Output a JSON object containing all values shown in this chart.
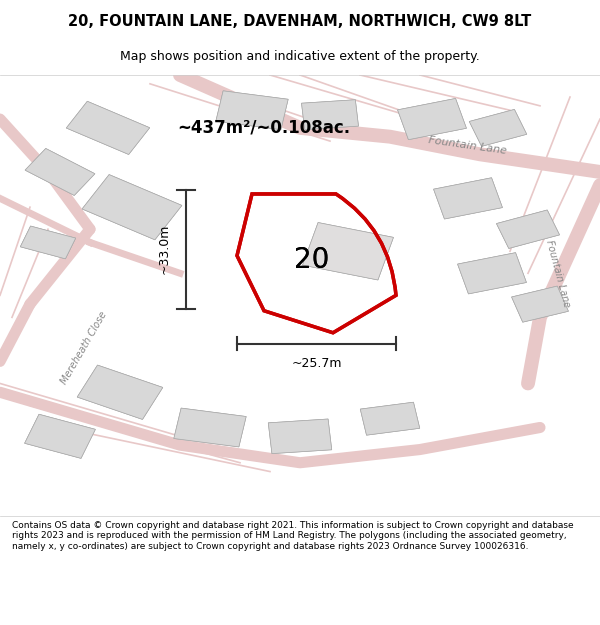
{
  "title_line1": "20, FOUNTAIN LANE, DAVENHAM, NORTHWICH, CW9 8LT",
  "title_line2": "Map shows position and indicative extent of the property.",
  "area_text": "~437m²/~0.108ac.",
  "label_number": "20",
  "dim_width": "~25.7m",
  "dim_height": "~33.0m",
  "road_label1": "Fountain Lane",
  "road_label2": "Fountain Lane",
  "road_label3": "Mereheath Close",
  "footer_text": "Contains OS data © Crown copyright and database right 2021. This information is subject to Crown copyright and database rights 2023 and is reproduced with the permission of HM Land Registry. The polygons (including the associated geometry, namely x, y co-ordinates) are subject to Crown copyright and database rights 2023 Ordnance Survey 100026316.",
  "bg_color": "#f5f5f5",
  "map_bg": "#f0eeee",
  "road_color": "#e8c8c8",
  "building_color": "#d8d8d8",
  "plot_line_color": "#cc0000",
  "dim_line_color": "#333333",
  "title_bg": "#ffffff",
  "footer_bg": "#ffffff"
}
